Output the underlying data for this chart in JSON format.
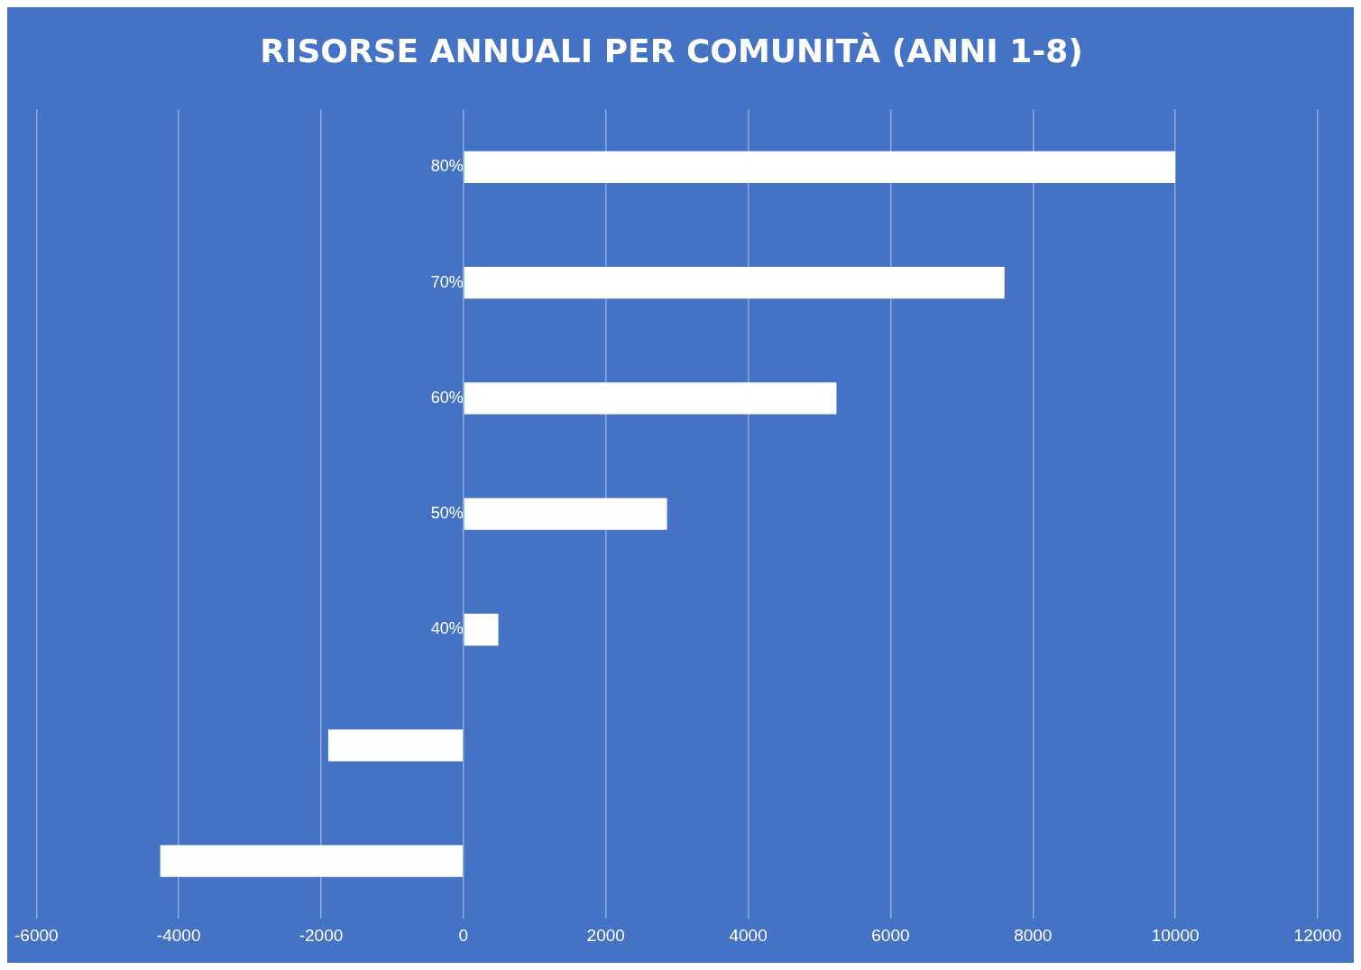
{
  "chart_data": {
    "type": "bar",
    "orientation": "horizontal",
    "title": "RISORSE ANNUALI PER COMUNITÀ (ANNI 1-8)",
    "categories": [
      "80%",
      "70%",
      "60%",
      "50%",
      "40%",
      null,
      null
    ],
    "values": [
      10000,
      7600,
      5240,
      2860,
      490,
      -1900,
      -4260
    ],
    "color": "#ffffff",
    "xlim": [
      -6000,
      12000
    ],
    "xticks": [
      -6000,
      -4000,
      -2000,
      0,
      2000,
      4000,
      6000,
      8000,
      10000,
      12000
    ],
    "grid": "x",
    "legend": false
  }
}
